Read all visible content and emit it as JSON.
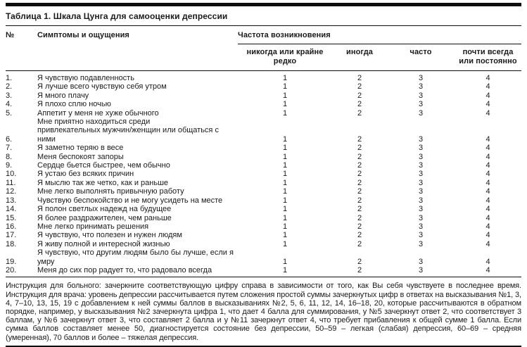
{
  "page": {
    "title": "Таблица 1. Шкала Цунга для самооценки депрессии"
  },
  "table": {
    "header": {
      "num": "№",
      "symptoms": "Симптомы и ощущения",
      "frequency_group": "Частота возникновения",
      "options": [
        "никогда или крайне\nредко",
        "иногда",
        "часто",
        "почти всегда\nили постоянно"
      ]
    },
    "score_options": [
      "1",
      "2",
      "3",
      "4"
    ],
    "rows": [
      {
        "num": "1.",
        "symptom": "Я чувствую подавленность"
      },
      {
        "num": "2.",
        "symptom": "Я лучше всего чувствую себя утром"
      },
      {
        "num": "3.",
        "symptom": "Я много плачу"
      },
      {
        "num": "4.",
        "symptom": "Я плохо сплю ночью"
      },
      {
        "num": "5.",
        "symptom": "Аппетит у меня не хуже обычного"
      },
      {
        "num": "6.",
        "symptom": "Мне приятно находиться среди\nпривлекательных мужчин/женщин или общаться с ними"
      },
      {
        "num": "7.",
        "symptom": "Я заметно теряю в весе"
      },
      {
        "num": "8.",
        "symptom": "Меня беспокоят запоры"
      },
      {
        "num": "9.",
        "symptom": "Сердце бьется быстрее, чем обычно"
      },
      {
        "num": "10.",
        "symptom": "Я устаю без всяких причин"
      },
      {
        "num": "11.",
        "symptom": "Я мыслю так же четко, как и раньше"
      },
      {
        "num": "12.",
        "symptom": "Мне легко выполнять привычную работу"
      },
      {
        "num": "13.",
        "symptom": "Чувствую беспокойство и не могу усидеть на месте"
      },
      {
        "num": "14.",
        "symptom": "Я полон светлых надежд на будущее"
      },
      {
        "num": "15.",
        "symptom": "Я более раздражителен, чем раньше"
      },
      {
        "num": "16.",
        "symptom": "Мне легко принимать решения"
      },
      {
        "num": "17.",
        "symptom": "Я чувствую, что полезен и нужен людям"
      },
      {
        "num": "18.",
        "symptom": "Я живу полной и интересной жизнью"
      },
      {
        "num": "19.",
        "symptom": "Я чувствую, что другим людям было бы лучше, если я умру"
      },
      {
        "num": "20.",
        "symptom": "Меня до сих пор радует то, что радовало всегда"
      }
    ]
  },
  "footnote": "Инструкция для больного: зачеркните соответствующую цифру справа в зависимости от того, как Вы себя чувствуете в последнее время. Инструкция для врача: уровень депрессии рассчитывается путем сложения простой суммы зачеркнутых цифр в ответах на высказывания №1, 3, 4, 7–10, 13, 15, 19 с добавлением к ней суммы баллов в высказываниях №2, 5, 6, 11, 12, 14, 16–18, 20, которые рассчитываются в обратном порядке, например, у высказывания №2 зачеркнута цифра 1, что дает 4 балла для суммирования, у №5 зачеркнут ответ 2, что соответствует 3 баллам, у №6 зачеркнут ответ 3, что составляет 2 балла и у №11 зачеркнут ответ 4, что требует прибавления к общей сумме 1 балла. Если сумма баллов составляет менее 50, диагностируется состояние без депрессии, 50–59 – легкая (слабая) депрессия, 60–69 – средняя (умеренная), 70 баллов и более – тяжелая депрессия."
}
